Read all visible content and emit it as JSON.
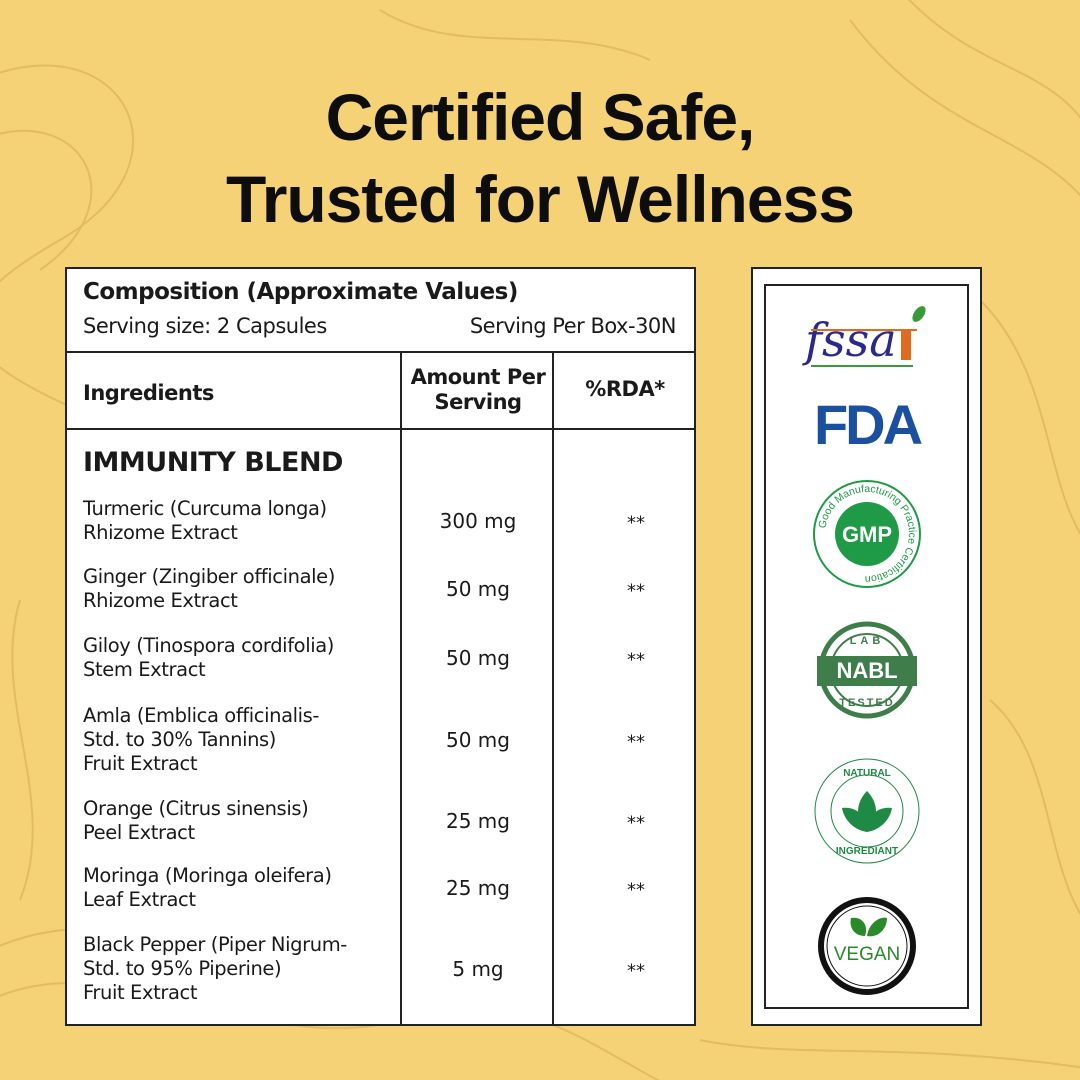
{
  "title_lines": [
    "Certified Safe,",
    "Trusted for Wellness"
  ],
  "table": {
    "composition": "Composition (Approximate Values)",
    "serving_size": "Serving size: 2 Capsules",
    "serving_per_box": "Serving Per Box-30N",
    "headers": {
      "ingredients": "Ingredients",
      "amount": [
        "Amount Per",
        "Serving"
      ],
      "rda": "%RDA*"
    },
    "blend": "IMMUNITY BLEND",
    "rows": [
      {
        "name": [
          "Turmeric (Curcuma longa)",
          "Rhizome Extract"
        ],
        "amount": "300 mg",
        "rda": "**"
      },
      {
        "name": [
          "Ginger (Zingiber officinale)",
          "Rhizome Extract"
        ],
        "amount": "50 mg",
        "rda": "**"
      },
      {
        "name": [
          "Giloy (Tinospora cordifolia)",
          "Stem Extract"
        ],
        "amount": "50 mg",
        "rda": "**"
      },
      {
        "name": [
          "Amla (Emblica officinalis-",
          "Std. to 30% Tannins)",
          "Fruit Extract"
        ],
        "amount": "50 mg",
        "rda": "**"
      },
      {
        "name": [
          "Orange (Citrus sinensis)",
          "Peel Extract"
        ],
        "amount": "25 mg",
        "rda": "**"
      },
      {
        "name": [
          "Moringa (Moringa oleifera)",
          "Leaf Extract"
        ],
        "amount": "25 mg",
        "rda": "**"
      },
      {
        "name": [
          "Black Pepper (Piper Nigrum-",
          "Std. to 95% Piperine)",
          "Fruit Extract"
        ],
        "amount": "5 mg",
        "rda": "**"
      }
    ]
  },
  "badges": {
    "fssai": "fssai",
    "fda": "FDA",
    "gmp": {
      "center": "GMP",
      "ring": "Good Manufacturing Practice Certification"
    },
    "nabl": {
      "center": "NABL",
      "top": "LAB",
      "bottom": "TESTED"
    },
    "natural": {
      "top": "NATURAL",
      "bottom": "INGREDIANT"
    },
    "vegan": "VEGAN"
  },
  "colors": {
    "background": "#f5d276",
    "green": "#1f9a46",
    "fda_blue": "#1b4fa0",
    "fssai_purple": "#2b2a8c",
    "fssai_orange": "#e06a1f"
  }
}
